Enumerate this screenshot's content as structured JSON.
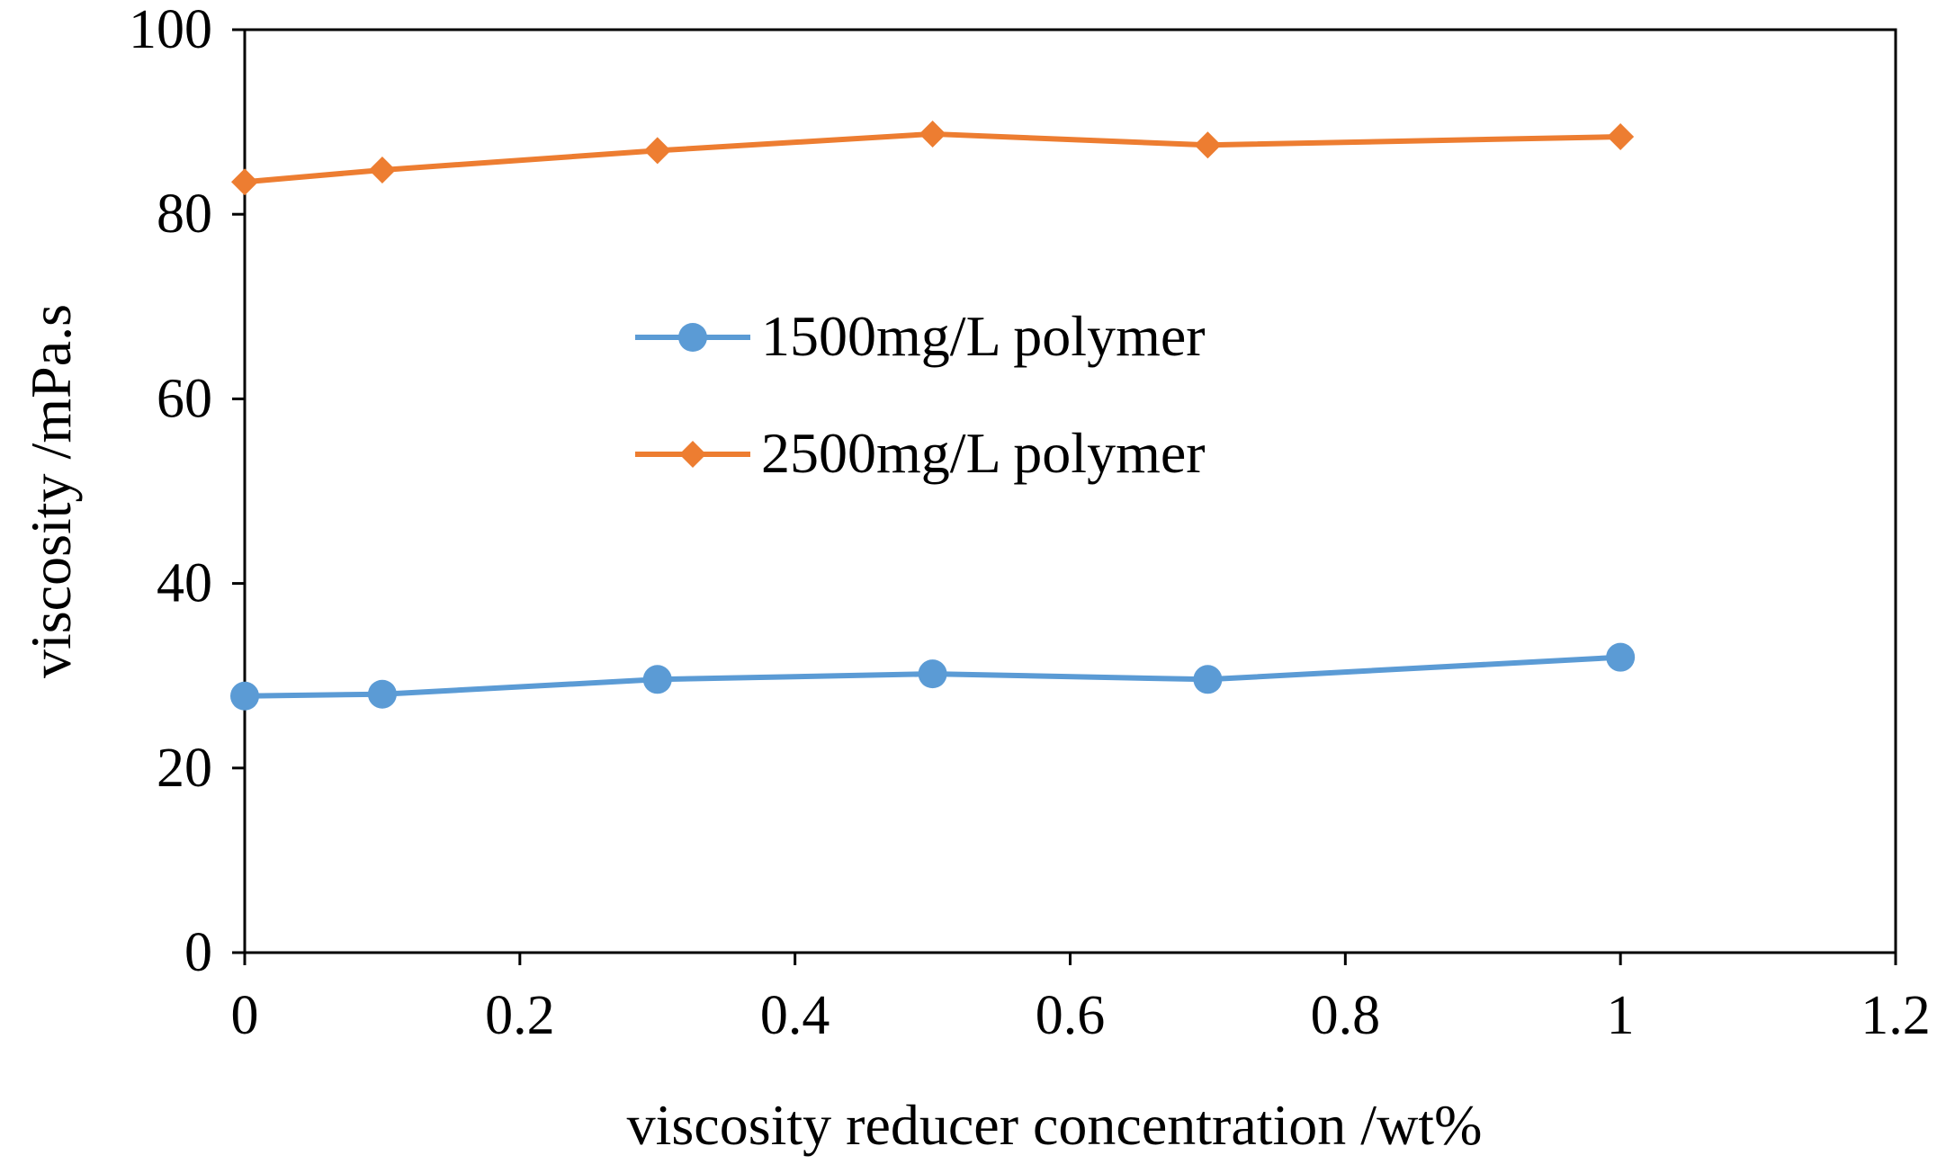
{
  "chart_data": {
    "type": "line",
    "title": "",
    "xlabel": "viscosity reducer concentration  /wt%",
    "ylabel": "viscosity /mPa.s",
    "xlim": [
      0,
      1.2
    ],
    "ylim": [
      0,
      100
    ],
    "xticks": [
      "0",
      "0.2",
      "0.4",
      "0.6",
      "0.8",
      "1",
      "1.2"
    ],
    "yticks": [
      "0",
      "20",
      "40",
      "60",
      "80",
      "100"
    ],
    "grid": false,
    "legend_position": "center-left",
    "x": [
      0,
      0.1,
      0.3,
      0.5,
      0.7,
      1.0
    ],
    "series": [
      {
        "name": "1500mg/L polymer",
        "color": "#5b9bd5",
        "marker": "circle",
        "values": [
          27.8,
          28.0,
          29.6,
          30.2,
          29.6,
          32.0
        ]
      },
      {
        "name": "2500mg/L polymer",
        "color": "#ed7d31",
        "marker": "diamond",
        "values": [
          83.5,
          84.8,
          86.9,
          88.7,
          87.5,
          88.4
        ]
      }
    ]
  }
}
